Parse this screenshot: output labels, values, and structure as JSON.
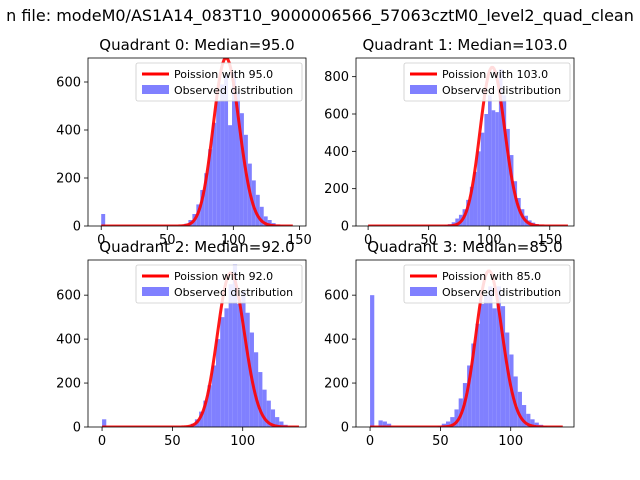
{
  "figure": {
    "suptitle": "n file: modeM0/AS1A14_083T10_9000006566_57063cztM0_level2_quad_clean"
  },
  "colors": {
    "poisson": "#ff0000",
    "observed": "#8080ff",
    "axis": "#000000"
  },
  "chart_data": [
    {
      "type": "bar",
      "title": "Quadrant 0: Median=95.0",
      "xlim": [
        -10,
        155
      ],
      "ylim": [
        0,
        700
      ],
      "xticks": [
        0,
        50,
        100,
        150
      ],
      "yticks": [
        0,
        200,
        400,
        600
      ],
      "bin_width": 3,
      "legend": {
        "position": "top-right",
        "poisson_label": "Poission with 95.0",
        "observed_label": "Observed distribution"
      },
      "poisson_mean": 95.0,
      "poisson_peak": 700,
      "poisson_range": [
        0,
        145
      ],
      "hist": {
        "x": [
          0,
          60,
          63,
          66,
          69,
          72,
          75,
          78,
          81,
          84,
          87,
          90,
          93,
          96,
          99,
          102,
          105,
          108,
          111,
          114,
          117,
          120,
          123,
          126,
          129,
          132,
          135
        ],
        "counts": [
          50,
          5,
          10,
          25,
          50,
          90,
          150,
          220,
          320,
          430,
          520,
          590,
          630,
          420,
          640,
          560,
          470,
          380,
          260,
          190,
          130,
          80,
          40,
          25,
          12,
          6,
          3
        ]
      }
    },
    {
      "type": "bar",
      "title": "Quadrant 1: Median=103.0",
      "xlim": [
        -10,
        170
      ],
      "ylim": [
        0,
        900
      ],
      "xticks": [
        0,
        50,
        100,
        150
      ],
      "yticks": [
        0,
        200,
        400,
        600,
        800
      ],
      "bin_width": 3,
      "legend": {
        "position": "top-right",
        "poisson_label": "Poission with 103.0",
        "observed_label": "Observed distribution"
      },
      "poisson_mean": 103.0,
      "poisson_peak": 850,
      "poisson_range": [
        0,
        165
      ],
      "hist": {
        "x": [
          63,
          66,
          69,
          72,
          75,
          78,
          81,
          84,
          87,
          90,
          93,
          96,
          99,
          102,
          105,
          108,
          111,
          114,
          117,
          120,
          123,
          126,
          129,
          132,
          135,
          138,
          141,
          144,
          147
        ],
        "counts": [
          5,
          10,
          20,
          40,
          60,
          90,
          140,
          210,
          290,
          400,
          500,
          600,
          700,
          620,
          610,
          840,
          700,
          520,
          380,
          240,
          150,
          90,
          55,
          30,
          18,
          10,
          6,
          3,
          2
        ]
      }
    },
    {
      "type": "bar",
      "title": "Quadrant 2: Median=92.0",
      "xlim": [
        -10,
        145
      ],
      "ylim": [
        0,
        760
      ],
      "xticks": [
        0,
        50,
        100
      ],
      "yticks": [
        0,
        200,
        400,
        600
      ],
      "bin_width": 3,
      "legend": {
        "position": "top-right",
        "poisson_label": "Poission with 92.0",
        "observed_label": "Observed distribution"
      },
      "poisson_mean": 92.0,
      "poisson_peak": 700,
      "poisson_range": [
        0,
        140
      ],
      "hist": {
        "x": [
          0,
          60,
          63,
          66,
          69,
          72,
          75,
          78,
          81,
          84,
          87,
          90,
          93,
          96,
          99,
          102,
          105,
          108,
          111,
          114,
          117,
          120,
          123,
          126,
          129
        ],
        "counts": [
          35,
          5,
          15,
          35,
          70,
          120,
          190,
          280,
          400,
          500,
          540,
          650,
          740,
          560,
          620,
          520,
          430,
          340,
          250,
          170,
          120,
          80,
          45,
          25,
          10
        ]
      }
    },
    {
      "type": "bar",
      "title": "Quadrant 3: Median=85.0",
      "xlim": [
        -10,
        145
      ],
      "ylim": [
        0,
        760
      ],
      "xticks": [
        0,
        50,
        100
      ],
      "yticks": [
        0,
        200,
        400,
        600
      ],
      "bin_width": 3,
      "legend": {
        "position": "top-right",
        "poisson_label": "Poission with 85.0",
        "observed_label": "Observed distribution"
      },
      "poisson_mean": 85.0,
      "poisson_peak": 710,
      "poisson_range": [
        0,
        137
      ],
      "hist": {
        "x": [
          0,
          6,
          9,
          12,
          48,
          51,
          54,
          57,
          60,
          63,
          66,
          69,
          72,
          75,
          78,
          81,
          84,
          87,
          90,
          93,
          96,
          99,
          102,
          105,
          108,
          111,
          114,
          117,
          120,
          123
        ],
        "counts": [
          600,
          30,
          25,
          15,
          5,
          15,
          25,
          45,
          80,
          130,
          200,
          280,
          380,
          470,
          560,
          600,
          640,
          540,
          640,
          550,
          430,
          330,
          230,
          160,
          100,
          60,
          35,
          20,
          10,
          5
        ]
      }
    }
  ]
}
